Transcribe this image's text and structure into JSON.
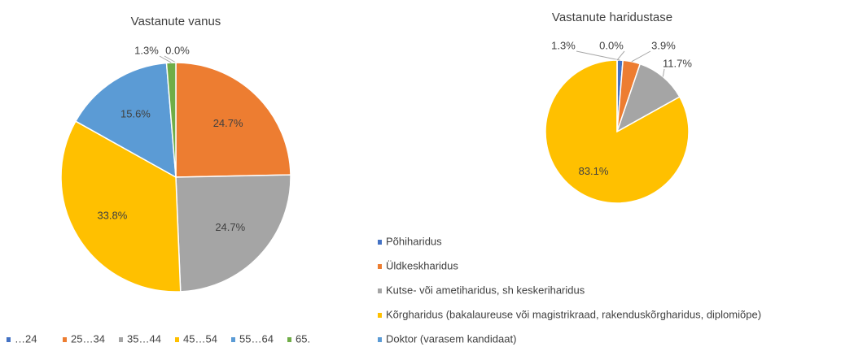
{
  "chart_data": [
    {
      "type": "pie",
      "title": "Vastanute vanus",
      "categories": [
        "…24",
        "25…34",
        "35…44",
        "45…54",
        "55…64",
        "65."
      ],
      "values": [
        0.0,
        24.7,
        24.7,
        33.8,
        15.6,
        1.3
      ],
      "value_labels": [
        "0.0%",
        "24.7%",
        "24.7%",
        "33.8%",
        "15.6%",
        "1.3%"
      ],
      "colors": [
        "#4472c4",
        "#ed7d31",
        "#a5a5a5",
        "#ffc000",
        "#5b9bd5",
        "#70ad47"
      ],
      "legend": "bottom"
    },
    {
      "type": "pie",
      "title": "Vastanute haridustase",
      "categories": [
        "Põhiharidus",
        "Üldkeskharidus",
        "Kutse- või ametiharidus, sh keskeriharidus",
        "Kõrgharidus (bakalaureuse või magistrikraad, rakenduskõrgharidus, diplomiõpe)",
        "Doktor (varasem kandidaat)"
      ],
      "values": [
        1.3,
        3.9,
        11.7,
        83.1,
        0.0
      ],
      "value_labels": [
        "1.3%",
        "3.9%",
        "11.7%",
        "83.1%",
        "0.0%"
      ],
      "colors": [
        "#4472c4",
        "#ed7d31",
        "#a5a5a5",
        "#ffc000",
        "#5b9bd5"
      ],
      "legend": "bottom"
    }
  ]
}
